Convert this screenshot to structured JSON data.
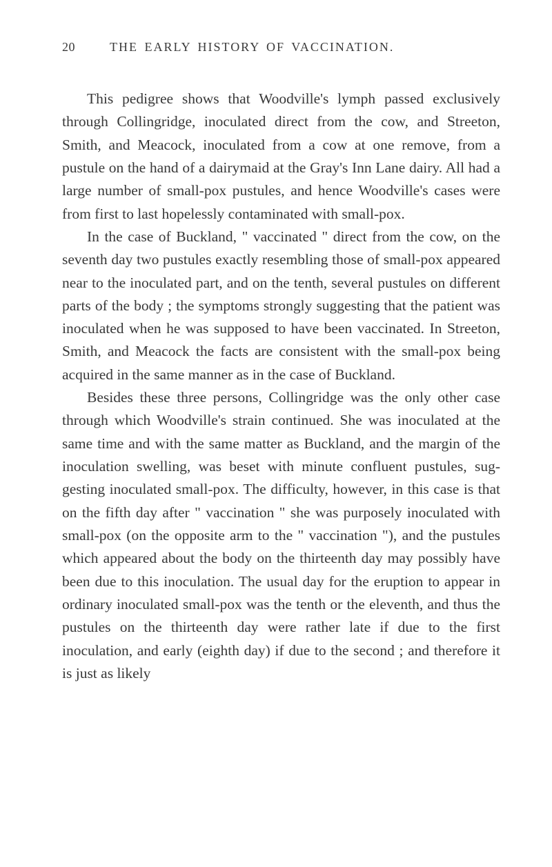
{
  "page": {
    "number": "20",
    "running_title": "THE EARLY HISTORY OF VACCINATION.",
    "background_color": "#ffffff",
    "text_color": "#383838",
    "header_color": "#3a3a3a",
    "font_family": "Georgia, 'Times New Roman', serif",
    "body_font_size": 21.5,
    "header_font_size": 18,
    "line_height": 1.55
  },
  "paragraphs": {
    "p1": "This pedigree shows that Woodville's lymph passed exclusively through Collingridge, inoculated direct from the cow, and Streeton, Smith, and Meacock, inoculated from a cow at one remove, from a pustule on the hand of a dairymaid at the Gray's Inn Lane dairy. All had a large number of small-pox pustules, and hence Woodville's cases were from first to last hopelessly contaminated with small-pox.",
    "p2": "In the case of Buckland, \" vaccinated \" direct from the cow, on the seventh day two pustules exactly resembling those of small-pox appeared near to the inoculated part, and on the tenth, several pustules on different parts of the body ; the symptoms strongly suggesting that the patient was inoculated when he was supposed to have been vaccinated. In Streeton, Smith, and Meacock the facts are consistent with the small-pox being acquired in the same manner as in the case of Buckland.",
    "p3": "Besides these three persons, Collingridge was the only other case through which Woodville's strain continued. She was inoculated at the same time and with the same matter as Buckland, and the margin of the inoculation swelling, was beset with minute confluent pustules, sug­gesting inoculated small-pox. The difficulty, however, in this case is that on the fifth day after \" vaccination \" she was purposely inoculated with small-pox (on the opposite arm to the \" vaccination \"), and the pustules which appeared about the body on the thirteenth day may possibly have been due to this inoculation. The usual day for the eruption to appear in ordinary inocu­lated small-pox was the tenth or the eleventh, and thus the pustules on the thirteenth day were rather late if due to the first inoculation, and early (eighth day) if due to the second ; and therefore it is just as likely"
  }
}
